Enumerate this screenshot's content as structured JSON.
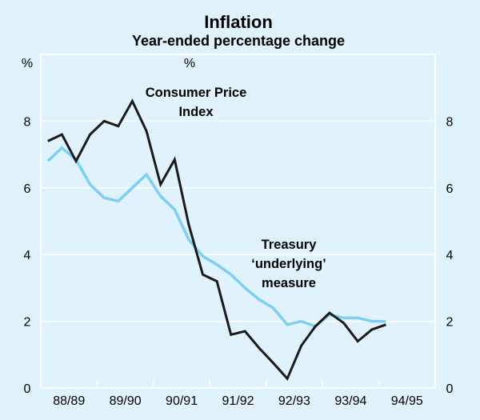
{
  "chart_data": {
    "type": "line",
    "title": "Inflation",
    "subtitle": "Year-ended percentage change",
    "ylabel_left": "%",
    "ylabel_right": "%",
    "xlabel": "",
    "ylim": [
      0,
      10
    ],
    "yticks": [
      0,
      2,
      4,
      6,
      8
    ],
    "grid": true,
    "x_categories": [
      "88/89",
      "89/90",
      "90/91",
      "91/92",
      "92/93",
      "93/94",
      "94/95"
    ],
    "points_per_category": 4,
    "series": [
      {
        "name": "Consumer Price Index",
        "label_lines": [
          "Consumer Price",
          "Index"
        ],
        "color": "#1a1a1a",
        "values": [
          7.4,
          7.6,
          6.8,
          7.6,
          8.0,
          7.85,
          8.6,
          7.7,
          6.1,
          6.85,
          4.9,
          3.4,
          3.2,
          1.6,
          1.7,
          1.2,
          0.75,
          0.28,
          1.27,
          1.85,
          2.25,
          1.95,
          1.4,
          1.75,
          1.9
        ]
      },
      {
        "name": "Treasury 'underlying' measure",
        "label_lines": [
          "Treasury",
          "‘underlying’",
          "measure"
        ],
        "color": "#7FD0F0",
        "values": [
          6.8,
          7.2,
          6.85,
          6.1,
          5.7,
          5.6,
          6.0,
          6.4,
          5.75,
          5.35,
          4.45,
          3.95,
          3.7,
          3.4,
          3.0,
          2.65,
          2.4,
          1.9,
          2.0,
          1.85,
          2.2,
          2.1,
          2.1,
          2.0,
          2.0
        ]
      }
    ]
  }
}
